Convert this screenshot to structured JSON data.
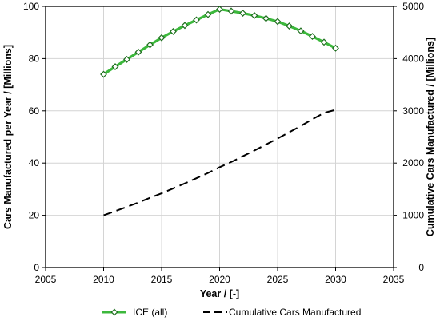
{
  "chart_data": {
    "type": "line",
    "xlabel": "Year / [-]",
    "ylabel": "Cars Manufactured per Year / [Millions]",
    "y2label": "Cumulative Cars Manufactured / [Millions]",
    "xlim": [
      2005,
      2035
    ],
    "ylim": [
      0,
      100
    ],
    "y2lim": [
      0,
      5000
    ],
    "xticks": [
      2005,
      2010,
      2015,
      2020,
      2025,
      2030,
      2035
    ],
    "yticks": [
      0,
      20,
      40,
      60,
      80,
      100
    ],
    "y2ticks": [
      0,
      1000,
      2000,
      3000,
      4000,
      5000
    ],
    "grid": true,
    "legend_position": "bottom",
    "series": [
      {
        "name": "ICE (all)",
        "axis": "left",
        "style": "line-with-diamond-markers",
        "color": "#3cb83c",
        "marker_color": "#1e6e1e",
        "x": [
          2010,
          2011,
          2012,
          2013,
          2014,
          2015,
          2016,
          2017,
          2018,
          2019,
          2020,
          2021,
          2022,
          2023,
          2024,
          2025,
          2026,
          2027,
          2028,
          2029,
          2030
        ],
        "y": [
          74.0,
          76.9,
          79.7,
          82.5,
          85.3,
          88.0,
          90.4,
          92.7,
          94.8,
          96.9,
          98.9,
          98.2,
          97.4,
          96.5,
          95.4,
          94.2,
          92.5,
          90.6,
          88.5,
          86.3,
          84.0
        ]
      },
      {
        "name": "Cumulative Cars Manufactured",
        "axis": "right",
        "style": "dashed-line",
        "color": "#000000",
        "x": [
          2010,
          2011,
          2012,
          2013,
          2014,
          2015,
          2016,
          2017,
          2018,
          2019,
          2020,
          2021,
          2022,
          2023,
          2024,
          2025,
          2026,
          2027,
          2028,
          2029,
          2030
        ],
        "y": [
          1000,
          1080,
          1160,
          1245,
          1335,
          1420,
          1515,
          1610,
          1710,
          1810,
          1920,
          2020,
          2130,
          2240,
          2355,
          2470,
          2590,
          2710,
          2840,
          2960,
          3020
        ]
      }
    ]
  }
}
